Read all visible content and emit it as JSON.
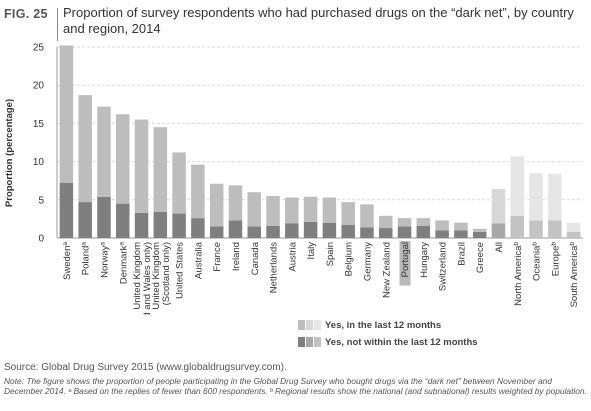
{
  "figure": {
    "label": "FIG. 25",
    "title": "Proportion of survey respondents who had purchased drugs on the “dark net”, by country and region, 2014"
  },
  "chart_data": {
    "type": "bar",
    "stacked": true,
    "ylabel": "Proportion (percentage)",
    "xlabel": "",
    "ylim": [
      0,
      25
    ],
    "yticks": [
      0,
      5,
      10,
      15,
      20,
      25
    ],
    "grid": true,
    "legend_position": "bottom-right",
    "categories": [
      {
        "name": "Sweden",
        "sup": "a",
        "group": "country"
      },
      {
        "name": "Poland",
        "sup": "a",
        "group": "country"
      },
      {
        "name": "Norway",
        "sup": "a",
        "group": "country"
      },
      {
        "name": "Denmark",
        "sup": "a",
        "group": "country"
      },
      {
        "name": "United Kingdom (England and Wales only)",
        "lines": [
          "United Kingdom",
          "(England and Wales only)"
        ],
        "group": "country"
      },
      {
        "name": "United Kingdom (Scotland only)",
        "lines": [
          "United Kingdom",
          "(Scotland only)"
        ],
        "group": "country"
      },
      {
        "name": "United States",
        "group": "country"
      },
      {
        "name": "Australia",
        "group": "country"
      },
      {
        "name": "France",
        "group": "country"
      },
      {
        "name": "Ireland",
        "group": "country"
      },
      {
        "name": "Canada",
        "group": "country"
      },
      {
        "name": "Netherlands",
        "group": "country"
      },
      {
        "name": "Austria",
        "group": "country"
      },
      {
        "name": "Italy",
        "group": "country"
      },
      {
        "name": "Spain",
        "group": "country"
      },
      {
        "name": "Belgium",
        "group": "country"
      },
      {
        "name": "Germany",
        "group": "country"
      },
      {
        "name": "New Zealand",
        "group": "country"
      },
      {
        "name": "Portugal",
        "group": "country",
        "highlight": true
      },
      {
        "name": "Hungary",
        "group": "country"
      },
      {
        "name": "Switzerland",
        "group": "country"
      },
      {
        "name": "Brazil",
        "group": "country"
      },
      {
        "name": "Greece",
        "group": "country"
      },
      {
        "name": "All",
        "group": "all"
      },
      {
        "name": "North America",
        "sup": "b",
        "group": "region"
      },
      {
        "name": "Oceania",
        "sup": "b",
        "group": "region"
      },
      {
        "name": "Europe",
        "sup": "b",
        "group": "region"
      },
      {
        "name": "South America",
        "sup": "b",
        "group": "region"
      }
    ],
    "series": [
      {
        "name": "Yes, not within the last 12 months",
        "values": [
          7.2,
          4.7,
          5.4,
          4.5,
          3.3,
          3.4,
          3.2,
          2.6,
          1.5,
          2.3,
          1.5,
          1.6,
          1.9,
          2.1,
          2.0,
          1.7,
          1.4,
          1.3,
          1.5,
          1.6,
          1.0,
          1.0,
          0.8,
          1.9,
          2.9,
          2.3,
          2.3,
          0.8
        ]
      },
      {
        "name": "Yes, in the last 12 months",
        "values": [
          18.0,
          14.0,
          11.8,
          11.7,
          12.2,
          11.1,
          8.0,
          7.0,
          5.6,
          4.6,
          4.5,
          3.9,
          3.4,
          3.3,
          3.3,
          3.0,
          3.0,
          1.6,
          1.1,
          1.0,
          1.3,
          1.0,
          0.4,
          4.5,
          7.8,
          6.2,
          6.1,
          1.2
        ]
      }
    ],
    "colors": {
      "country": [
        "#7f7f7f",
        "#bdbdbd"
      ],
      "all": [
        "#a8a8a8",
        "#d7d7d7"
      ],
      "region": [
        "#c3c3c3",
        "#e6e6e6"
      ],
      "grid": "#d9d9d9",
      "axis": "#9a9a9a",
      "highlight": "#b9b9b9"
    }
  },
  "legend": {
    "items": [
      {
        "label": "Yes, in the last 12 months",
        "colors": [
          "#bdbdbd",
          "#d7d7d7",
          "#e6e6e6"
        ]
      },
      {
        "label": "Yes, not within the last 12 months",
        "colors": [
          "#7f7f7f",
          "#a8a8a8",
          "#c3c3c3"
        ]
      }
    ]
  },
  "source": "Source: Global Drug Survey 2015 (www.globaldrugsurvey.com).",
  "note": "Note: The figure shows the proportion of people participating in the Global Drug Survey who bought drugs via the “dark net” between November and December 2014. ᵃ Based on the replies of fewer than 600 respondents. ᵇ Regional results show the national (and subnational) results weighted by population."
}
